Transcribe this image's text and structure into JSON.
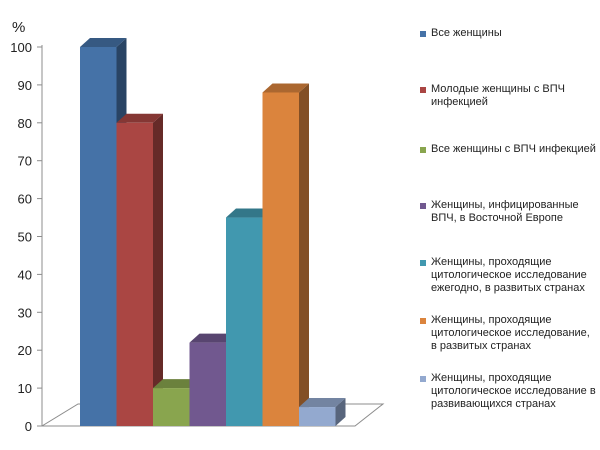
{
  "chart_data": {
    "type": "bar",
    "ylabel": "%",
    "ylim": [
      0,
      100
    ],
    "yticks": [
      0,
      10,
      20,
      30,
      40,
      50,
      60,
      70,
      80,
      90,
      100
    ],
    "legend_position": "right",
    "series": [
      {
        "name": "Все женщины",
        "value": 100,
        "color": "#4572A7"
      },
      {
        "name": "Молодые женщины с ВПЧ инфекцией",
        "value": 80,
        "color": "#AA4643"
      },
      {
        "name": "Все женщины с ВПЧ инфекцией",
        "value": 10,
        "color": "#89A54E"
      },
      {
        "name": "Женщины, инфицированные ВПЧ, в Восточной Европе",
        "value": 22,
        "color": "#71588F"
      },
      {
        "name": "Женщины, проходящие цитологическое исследование ежегодно, в развитых странах",
        "value": 55,
        "color": "#4198AF"
      },
      {
        "name": "Женщины, проходящие цитологическое исследование, в развитых странах",
        "value": 88,
        "color": "#DB843D"
      },
      {
        "name": "Женщины, проходящие цитологическое исследование в развивающихся странах",
        "value": 5,
        "color": "#93A9CF"
      }
    ]
  }
}
